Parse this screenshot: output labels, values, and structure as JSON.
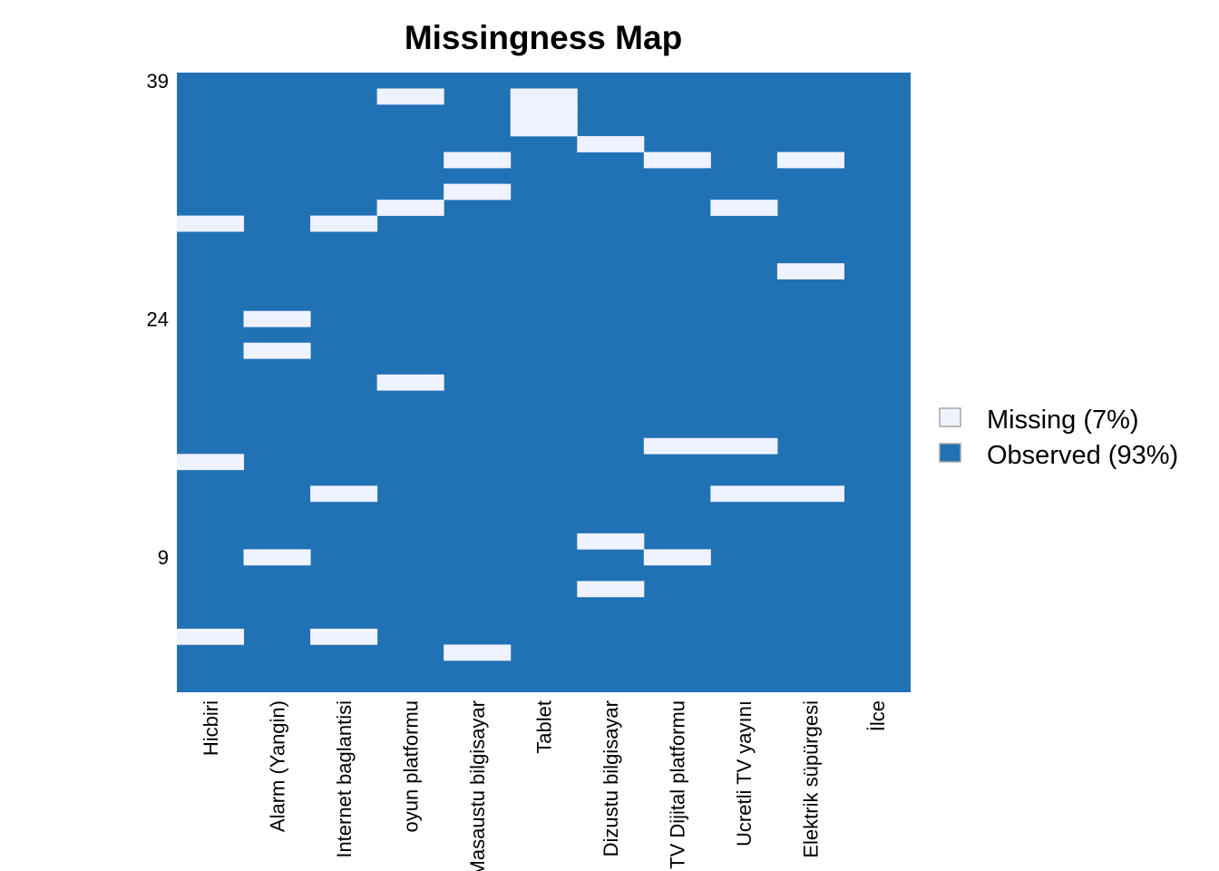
{
  "chart_data": {
    "type": "heatmap",
    "title": "Missingness Map",
    "xlabel": "",
    "ylabel": "",
    "rows": 39,
    "columns": [
      "Hicbiri",
      "Alarm (Yangin)",
      "Internet baglantisi",
      "oyun platformu",
      "Masaustu bilgisayar",
      "Tablet",
      "Dizustu bilgisayar",
      "TV Dijital platformu",
      "Ucretli TV yayını",
      "Elektrik süpürgesi",
      "İlce"
    ],
    "y_tick_labels": [
      "39",
      "24",
      "9"
    ],
    "y_tick_rows": [
      39,
      24,
      9
    ],
    "legend": [
      {
        "label": "Missing (7%)",
        "color": "#eff3ff"
      },
      {
        "label": "Observed (93%)",
        "color": "#2171b5"
      }
    ],
    "legend_position": "right",
    "grid": false,
    "missing_cells": [
      [
        0,
        30
      ],
      [
        0,
        15
      ],
      [
        0,
        4
      ],
      [
        1,
        24
      ],
      [
        1,
        22
      ],
      [
        1,
        9
      ],
      [
        2,
        30
      ],
      [
        2,
        13
      ],
      [
        2,
        4
      ],
      [
        3,
        38
      ],
      [
        3,
        31
      ],
      [
        3,
        20
      ],
      [
        4,
        34
      ],
      [
        4,
        32
      ],
      [
        4,
        3
      ],
      [
        5,
        38
      ],
      [
        5,
        37
      ],
      [
        5,
        36
      ],
      [
        6,
        35
      ],
      [
        6,
        10
      ],
      [
        6,
        7
      ],
      [
        7,
        34
      ],
      [
        7,
        16
      ],
      [
        7,
        9
      ],
      [
        8,
        31
      ],
      [
        8,
        16
      ],
      [
        8,
        13
      ],
      [
        9,
        34
      ],
      [
        9,
        27
      ],
      [
        9,
        13
      ]
    ]
  }
}
